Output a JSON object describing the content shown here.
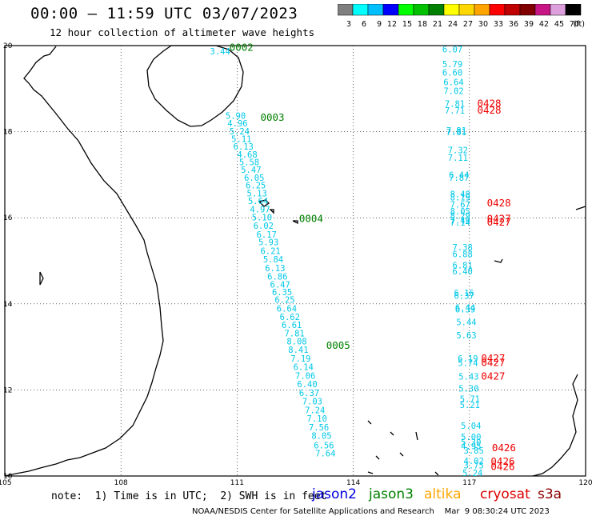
{
  "header": {
    "title": "00:00 – 11:59 UTC 03/07/2023",
    "subtitle": "12 hour collection of altimeter wave heights"
  },
  "colorbar": {
    "bins": [
      {
        "label": "3",
        "color": "#7f7f7f"
      },
      {
        "label": "6",
        "color": "#00ffff"
      },
      {
        "label": "9",
        "color": "#00bfff"
      },
      {
        "label": "12",
        "color": "#0000ff"
      },
      {
        "label": "15",
        "color": "#00ff00"
      },
      {
        "label": "18",
        "color": "#00c000"
      },
      {
        "label": "21",
        "color": "#008000"
      },
      {
        "label": "24",
        "color": "#ffff00"
      },
      {
        "label": "27",
        "color": "#ffd700"
      },
      {
        "label": "30",
        "color": "#ffa500"
      },
      {
        "label": "33",
        "color": "#ff0000"
      },
      {
        "label": "36",
        "color": "#c00000"
      },
      {
        "label": "39",
        "color": "#800000"
      },
      {
        "label": "42",
        "color": "#c71585"
      },
      {
        "label": "45",
        "color": "#dda0dd"
      },
      {
        "label": "70",
        "color": "#000000"
      }
    ],
    "unit": "(ft)"
  },
  "map": {
    "lon_ticks": [
      "105",
      "108",
      "111",
      "114",
      "117",
      "120"
    ],
    "lat_ticks": [
      "20",
      "18",
      "16",
      "14",
      "12",
      "10"
    ],
    "lon_range": [
      105,
      120
    ],
    "lat_range": [
      10,
      20
    ],
    "track_colors": {
      "wave": "#00c8e8",
      "time_green": "#008000",
      "time_red": "#ee0000"
    },
    "track_west": [
      {
        "lon": 110.3,
        "lat": 19.8,
        "text": "3.44"
      },
      {
        "lon": 110.7,
        "lat": 18.3,
        "text": "5.90"
      },
      {
        "lon": 110.75,
        "lat": 18.12,
        "text": "4.96"
      },
      {
        "lon": 110.8,
        "lat": 17.94,
        "text": "5.24"
      },
      {
        "lon": 110.85,
        "lat": 17.76,
        "text": "5.11"
      },
      {
        "lon": 110.9,
        "lat": 17.58,
        "text": "6.13"
      },
      {
        "lon": 111.0,
        "lat": 17.4,
        "text": "4.68"
      },
      {
        "lon": 111.05,
        "lat": 17.22,
        "text": "5.58"
      },
      {
        "lon": 111.1,
        "lat": 17.04,
        "text": "5.47"
      },
      {
        "lon": 111.18,
        "lat": 16.86,
        "text": "6.05"
      },
      {
        "lon": 111.22,
        "lat": 16.68,
        "text": "6.25"
      },
      {
        "lon": 111.25,
        "lat": 16.5,
        "text": "5.13"
      },
      {
        "lon": 111.28,
        "lat": 16.32,
        "text": "5.64"
      },
      {
        "lon": 111.33,
        "lat": 16.12,
        "text": "4.97"
      },
      {
        "lon": 111.38,
        "lat": 15.94,
        "text": "5.10"
      },
      {
        "lon": 111.42,
        "lat": 15.74,
        "text": "6.02"
      },
      {
        "lon": 111.5,
        "lat": 15.54,
        "text": "6.17"
      },
      {
        "lon": 111.55,
        "lat": 15.36,
        "text": "5.93"
      },
      {
        "lon": 111.6,
        "lat": 15.16,
        "text": "6.21"
      },
      {
        "lon": 111.67,
        "lat": 14.96,
        "text": "5.84"
      },
      {
        "lon": 111.72,
        "lat": 14.76,
        "text": "6.13"
      },
      {
        "lon": 111.78,
        "lat": 14.56,
        "text": "6.86"
      },
      {
        "lon": 111.85,
        "lat": 14.38,
        "text": "6.47"
      },
      {
        "lon": 111.9,
        "lat": 14.2,
        "text": "6.35"
      },
      {
        "lon": 111.97,
        "lat": 14.02,
        "text": "6.25"
      },
      {
        "lon": 112.02,
        "lat": 13.82,
        "text": "6.64"
      },
      {
        "lon": 112.1,
        "lat": 13.62,
        "text": "6.62"
      },
      {
        "lon": 112.15,
        "lat": 13.44,
        "text": "6.61"
      },
      {
        "lon": 112.22,
        "lat": 13.24,
        "text": "7.81"
      },
      {
        "lon": 112.28,
        "lat": 13.06,
        "text": "8.08"
      },
      {
        "lon": 112.32,
        "lat": 12.86,
        "text": "8.41"
      },
      {
        "lon": 112.38,
        "lat": 12.66,
        "text": "7.19"
      },
      {
        "lon": 112.45,
        "lat": 12.46,
        "text": "6.14"
      },
      {
        "lon": 112.5,
        "lat": 12.26,
        "text": "7.06"
      },
      {
        "lon": 112.55,
        "lat": 12.06,
        "text": "6.40"
      },
      {
        "lon": 112.6,
        "lat": 11.86,
        "text": "6.37"
      },
      {
        "lon": 112.68,
        "lat": 11.66,
        "text": "7.03"
      },
      {
        "lon": 112.75,
        "lat": 11.46,
        "text": "7.24"
      },
      {
        "lon": 112.8,
        "lat": 11.26,
        "text": "7.10"
      },
      {
        "lon": 112.85,
        "lat": 11.06,
        "text": "7.56"
      },
      {
        "lon": 112.92,
        "lat": 10.86,
        "text": "8.05"
      },
      {
        "lon": 112.98,
        "lat": 10.64,
        "text": "6.56"
      },
      {
        "lon": 113.02,
        "lat": 10.46,
        "text": "7.64"
      }
    ],
    "track_east": [
      {
        "lon": 116.3,
        "lat": 19.84,
        "text": "6.07"
      },
      {
        "lon": 116.3,
        "lat": 19.5,
        "text": "5.79"
      },
      {
        "lon": 116.3,
        "lat": 19.3,
        "text": "6.60"
      },
      {
        "lon": 116.33,
        "lat": 19.08,
        "text": "6.64"
      },
      {
        "lon": 116.33,
        "lat": 18.88,
        "text": "7.02"
      },
      {
        "lon": 116.36,
        "lat": 18.58,
        "text": "7.81"
      },
      {
        "lon": 116.36,
        "lat": 18.42,
        "text": "7.71"
      },
      {
        "lon": 116.4,
        "lat": 17.96,
        "text": "7.81"
      },
      {
        "lon": 116.4,
        "lat": 17.92,
        "text": "7.81"
      },
      {
        "lon": 116.44,
        "lat": 17.5,
        "text": "7.32"
      },
      {
        "lon": 116.44,
        "lat": 17.32,
        "text": "7.11"
      },
      {
        "lon": 116.47,
        "lat": 16.92,
        "text": "6.44"
      },
      {
        "lon": 116.47,
        "lat": 16.86,
        "text": "7.87"
      },
      {
        "lon": 116.5,
        "lat": 16.48,
        "text": "8.48"
      },
      {
        "lon": 116.5,
        "lat": 16.4,
        "text": "8.19"
      },
      {
        "lon": 116.5,
        "lat": 16.24,
        "text": "7.67"
      },
      {
        "lon": 116.5,
        "lat": 16.08,
        "text": "8.05"
      },
      {
        "lon": 116.5,
        "lat": 15.98,
        "text": "8.29"
      },
      {
        "lon": 116.5,
        "lat": 15.86,
        "text": "7.49"
      },
      {
        "lon": 116.5,
        "lat": 15.82,
        "text": "7.14"
      },
      {
        "lon": 116.56,
        "lat": 15.24,
        "text": "7.38"
      },
      {
        "lon": 116.56,
        "lat": 15.08,
        "text": "6.88"
      },
      {
        "lon": 116.56,
        "lat": 14.82,
        "text": "6.81"
      },
      {
        "lon": 116.56,
        "lat": 14.68,
        "text": "6.40"
      },
      {
        "lon": 116.6,
        "lat": 14.18,
        "text": "6.16"
      },
      {
        "lon": 116.6,
        "lat": 14.12,
        "text": "6.37"
      },
      {
        "lon": 116.63,
        "lat": 13.84,
        "text": "6.44"
      },
      {
        "lon": 116.63,
        "lat": 13.8,
        "text": "6.39"
      },
      {
        "lon": 116.66,
        "lat": 13.5,
        "text": "5.44"
      },
      {
        "lon": 116.66,
        "lat": 13.2,
        "text": "5.63"
      },
      {
        "lon": 116.7,
        "lat": 12.66,
        "text": "6.19"
      },
      {
        "lon": 116.7,
        "lat": 12.56,
        "text": "5.74"
      },
      {
        "lon": 116.72,
        "lat": 12.24,
        "text": "5.43"
      },
      {
        "lon": 116.72,
        "lat": 11.96,
        "text": "5.30"
      },
      {
        "lon": 116.75,
        "lat": 11.72,
        "text": "5.71"
      },
      {
        "lon": 116.75,
        "lat": 11.58,
        "text": "5.21"
      },
      {
        "lon": 116.78,
        "lat": 11.1,
        "text": "5.04"
      },
      {
        "lon": 116.78,
        "lat": 10.84,
        "text": "5.00"
      },
      {
        "lon": 116.78,
        "lat": 10.72,
        "text": "5.30"
      },
      {
        "lon": 116.78,
        "lat": 10.62,
        "text": "4.95"
      },
      {
        "lon": 116.82,
        "lat": 10.0,
        "text": "5.24"
      },
      {
        "lon": 116.85,
        "lat": 10.52,
        "text": "3.85"
      },
      {
        "lon": 116.85,
        "lat": 10.28,
        "text": "4.02"
      },
      {
        "lon": 116.85,
        "lat": 10.18,
        "text": "3.75"
      }
    ],
    "time_labels": [
      {
        "lon": 110.8,
        "lat": 19.88,
        "text": "0002",
        "color": "green"
      },
      {
        "lon": 111.6,
        "lat": 18.25,
        "text": "0003",
        "color": "green"
      },
      {
        "lon": 112.6,
        "lat": 15.9,
        "text": "0004",
        "color": "green"
      },
      {
        "lon": 113.3,
        "lat": 12.96,
        "text": "0005",
        "color": "green"
      },
      {
        "lon": 117.2,
        "lat": 18.58,
        "text": "0428",
        "color": "red"
      },
      {
        "lon": 117.2,
        "lat": 18.42,
        "text": "0428",
        "color": "red"
      },
      {
        "lon": 117.45,
        "lat": 16.26,
        "text": "0428",
        "color": "red"
      },
      {
        "lon": 117.45,
        "lat": 15.9,
        "text": "0427",
        "color": "red"
      },
      {
        "lon": 117.45,
        "lat": 15.82,
        "text": "0427",
        "color": "red"
      },
      {
        "lon": 117.3,
        "lat": 12.66,
        "text": "0427",
        "color": "red"
      },
      {
        "lon": 117.3,
        "lat": 12.56,
        "text": "0427",
        "color": "red"
      },
      {
        "lon": 117.3,
        "lat": 12.24,
        "text": "0427",
        "color": "red"
      },
      {
        "lon": 117.58,
        "lat": 10.58,
        "text": "0426",
        "color": "red"
      },
      {
        "lon": 117.55,
        "lat": 10.26,
        "text": "0426",
        "color": "red"
      },
      {
        "lon": 117.55,
        "lat": 10.14,
        "text": "0426",
        "color": "red"
      }
    ]
  },
  "footer": {
    "note": "note:  1) Time is in UTC;  2) SWH is in feet",
    "legend": [
      {
        "label": "jason2",
        "color": "#0000dd"
      },
      {
        "label": "jason3",
        "color": "#008000"
      },
      {
        "label": "altika",
        "color": "#ffa500"
      },
      {
        "label": "cryosat",
        "color": "#dd0000"
      },
      {
        "label": "s3a",
        "color": "#8b0000"
      }
    ],
    "credit": "NOAA/NESDIS Center for Satellite Applications and Research    Mar  9 08:30:24 UTC 2023"
  }
}
